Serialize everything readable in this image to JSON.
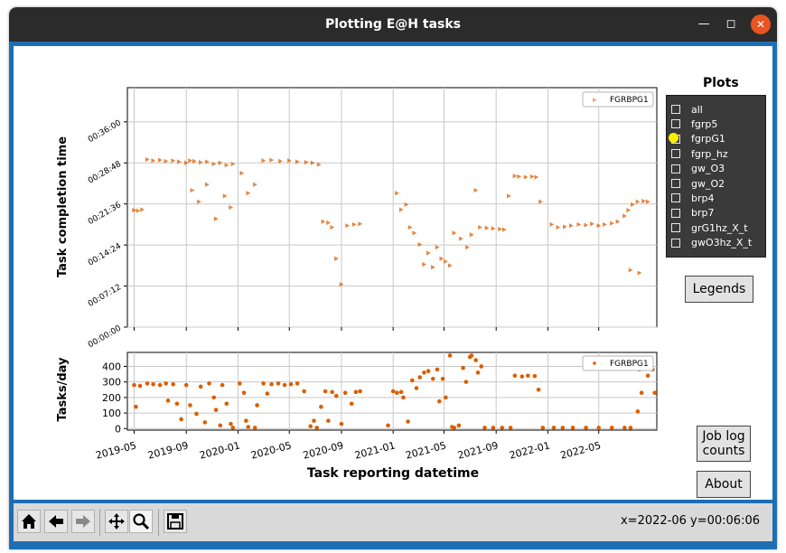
{
  "window": {
    "title": "Plotting E@H tasks"
  },
  "plots_panel": {
    "title": "Plots",
    "items": [
      {
        "label": "all",
        "checked": false
      },
      {
        "label": "fgrp5",
        "checked": false
      },
      {
        "label": "fgrpG1",
        "checked": true
      },
      {
        "label": "fgrp_hz",
        "checked": false
      },
      {
        "label": "gw_O3",
        "checked": false
      },
      {
        "label": "gw_O2",
        "checked": false
      },
      {
        "label": "brp4",
        "checked": false
      },
      {
        "label": "brp7",
        "checked": false
      },
      {
        "label": "grG1hz_X_t",
        "checked": false
      },
      {
        "label": "gwO3hz_X_t",
        "checked": false
      }
    ]
  },
  "buttons": {
    "legends": "Legends",
    "job_log_line1": "Job log",
    "job_log_line2": "counts",
    "about": "About"
  },
  "toolbar": {
    "coords": "x=2022-06 y=00:06:06",
    "icons": [
      "home-icon",
      "back-icon",
      "forward-icon",
      "pan-icon",
      "zoom-icon",
      "save-icon"
    ]
  },
  "colors": {
    "series": "#d95f02",
    "panel_bg": "#3a3a3a",
    "checked_marker": "#ffee00",
    "frame": "#1e6eb4"
  },
  "chart_data": [
    {
      "type": "scatter",
      "ylabel": "Task completion time",
      "legend": "top-right",
      "legend_entry": "FGRBPG1",
      "grid": true,
      "xlim": [
        "2019-04-15",
        "2022-09-15"
      ],
      "ylim_minutes": [
        0,
        42
      ],
      "y_ticks": [
        "00:00:00",
        "00:07:12",
        "00:14:24",
        "00:21:36",
        "00:28:48",
        "00:36:00"
      ],
      "series": [
        {
          "name": "FGRBPG1",
          "points": [
            [
              "2019-05-01",
              20.5
            ],
            [
              "2019-05-10",
              20.4
            ],
            [
              "2019-05-20",
              20.6
            ],
            [
              "2019-06-01",
              29.4
            ],
            [
              "2019-06-15",
              29.2
            ],
            [
              "2019-07-01",
              29.3
            ],
            [
              "2019-07-15",
              29.1
            ],
            [
              "2019-08-01",
              29.2
            ],
            [
              "2019-08-15",
              29.0
            ],
            [
              "2019-09-01",
              28.8
            ],
            [
              "2019-09-10",
              29.2
            ],
            [
              "2019-09-20",
              29.1
            ],
            [
              "2019-10-05",
              28.9
            ],
            [
              "2019-10-20",
              29.0
            ],
            [
              "2019-11-05",
              28.6
            ],
            [
              "2019-11-20",
              28.8
            ],
            [
              "2019-12-05",
              28.4
            ],
            [
              "2019-12-20",
              28.6
            ],
            [
              "2019-09-15",
              24.0
            ],
            [
              "2019-10-01",
              22.0
            ],
            [
              "2019-10-20",
              25.0
            ],
            [
              "2019-11-10",
              19.0
            ],
            [
              "2019-12-01",
              23.0
            ],
            [
              "2019-12-15",
              21.0
            ],
            [
              "2020-01-10",
              27.0
            ],
            [
              "2020-01-25",
              23.5
            ],
            [
              "2020-02-10",
              25.0
            ],
            [
              "2020-03-01",
              29.2
            ],
            [
              "2020-03-20",
              29.3
            ],
            [
              "2020-04-10",
              29.1
            ],
            [
              "2020-05-01",
              29.2
            ],
            [
              "2020-05-20",
              29.0
            ],
            [
              "2020-06-10",
              28.9
            ],
            [
              "2020-06-25",
              28.8
            ],
            [
              "2020-07-10",
              28.5
            ],
            [
              "2020-07-20",
              18.5
            ],
            [
              "2020-08-01",
              18.3
            ],
            [
              "2020-08-10",
              17.5
            ],
            [
              "2020-08-20",
              12.0
            ],
            [
              "2020-09-01",
              7.5
            ],
            [
              "2020-09-15",
              17.8
            ],
            [
              "2020-10-01",
              18.0
            ],
            [
              "2020-10-15",
              18.1
            ],
            [
              "2021-01-10",
              23.5
            ],
            [
              "2021-01-20",
              20.6
            ],
            [
              "2021-02-01",
              21.5
            ],
            [
              "2021-02-10",
              17.5
            ],
            [
              "2021-02-20",
              16.5
            ],
            [
              "2021-03-05",
              14.5
            ],
            [
              "2021-03-15",
              11.0
            ],
            [
              "2021-03-25",
              13.0
            ],
            [
              "2021-04-05",
              10.5
            ],
            [
              "2021-04-15",
              14.0
            ],
            [
              "2021-04-25",
              12.0
            ],
            [
              "2021-05-05",
              11.5
            ],
            [
              "2021-05-15",
              10.8
            ],
            [
              "2021-05-25",
              16.5
            ],
            [
              "2021-06-10",
              15.5
            ],
            [
              "2021-06-25",
              14.0
            ],
            [
              "2021-07-05",
              16.2
            ],
            [
              "2021-07-15",
              24.0
            ],
            [
              "2021-07-25",
              17.5
            ],
            [
              "2021-08-10",
              17.4
            ],
            [
              "2021-08-25",
              17.3
            ],
            [
              "2021-09-10",
              17.2
            ],
            [
              "2021-09-20",
              17.1
            ],
            [
              "2021-10-01",
              23.0
            ],
            [
              "2021-10-15",
              26.5
            ],
            [
              "2021-10-25",
              26.4
            ],
            [
              "2021-11-10",
              26.3
            ],
            [
              "2021-11-25",
              26.4
            ],
            [
              "2021-12-05",
              26.3
            ],
            [
              "2021-12-15",
              22.0
            ],
            [
              "2022-01-10",
              18.0
            ],
            [
              "2022-01-25",
              17.5
            ],
            [
              "2022-02-10",
              17.6
            ],
            [
              "2022-02-25",
              17.8
            ],
            [
              "2022-03-15",
              18.0
            ],
            [
              "2022-04-01",
              17.9
            ],
            [
              "2022-04-15",
              18.1
            ],
            [
              "2022-05-01",
              17.8
            ],
            [
              "2022-05-15",
              18.0
            ],
            [
              "2022-06-01",
              18.2
            ],
            [
              "2022-06-15",
              18.5
            ],
            [
              "2022-07-01",
              19.5
            ],
            [
              "2022-07-10",
              20.5
            ],
            [
              "2022-07-20",
              21.5
            ],
            [
              "2022-08-01",
              22.0
            ],
            [
              "2022-08-15",
              22.1
            ],
            [
              "2022-08-25",
              22.0
            ],
            [
              "2022-07-15",
              10.0
            ],
            [
              "2022-08-05",
              9.5
            ]
          ]
        }
      ]
    },
    {
      "type": "scatter",
      "xlabel": "Task reporting datetime",
      "ylabel": "Tasks/day",
      "legend": "top-right",
      "legend_entry": "FGRBPG1",
      "grid": true,
      "xlim": [
        "2019-04-15",
        "2022-09-15"
      ],
      "ylim": [
        -10,
        490
      ],
      "y_ticks": [
        0,
        100,
        200,
        300,
        400
      ],
      "x_ticks": [
        "2019-05",
        "2019-09",
        "2020-01",
        "2020-05",
        "2020-09",
        "2021-01",
        "2021-05",
        "2021-09",
        "2022-01",
        "2022-05"
      ],
      "series": [
        {
          "name": "FGRBPG1",
          "points": [
            [
              "2019-05-01",
              280
            ],
            [
              "2019-05-05",
              140
            ],
            [
              "2019-05-15",
              275
            ],
            [
              "2019-06-01",
              290
            ],
            [
              "2019-06-15",
              285
            ],
            [
              "2019-07-01",
              280
            ],
            [
              "2019-07-15",
              290
            ],
            [
              "2019-07-20",
              180
            ],
            [
              "2019-08-01",
              285
            ],
            [
              "2019-08-10",
              160
            ],
            [
              "2019-08-20",
              60
            ],
            [
              "2019-09-01",
              280
            ],
            [
              "2019-09-10",
              150
            ],
            [
              "2019-09-25",
              95
            ],
            [
              "2019-10-05",
              270
            ],
            [
              "2019-10-15",
              40
            ],
            [
              "2019-10-25",
              290
            ],
            [
              "2019-11-05",
              200
            ],
            [
              "2019-11-10",
              120
            ],
            [
              "2019-11-20",
              20
            ],
            [
              "2019-11-25",
              280
            ],
            [
              "2019-12-05",
              160
            ],
            [
              "2019-12-15",
              30
            ],
            [
              "2019-12-20",
              5
            ],
            [
              "2020-01-05",
              290
            ],
            [
              "2020-01-15",
              230
            ],
            [
              "2020-01-20",
              50
            ],
            [
              "2020-01-25",
              10
            ],
            [
              "2020-02-10",
              5
            ],
            [
              "2020-02-15",
              150
            ],
            [
              "2020-03-01",
              290
            ],
            [
              "2020-03-10",
              225
            ],
            [
              "2020-03-20",
              285
            ],
            [
              "2020-04-05",
              290
            ],
            [
              "2020-04-20",
              280
            ],
            [
              "2020-05-05",
              285
            ],
            [
              "2020-05-20",
              290
            ],
            [
              "2020-06-05",
              240
            ],
            [
              "2020-06-20",
              15
            ],
            [
              "2020-06-28",
              50
            ],
            [
              "2020-07-05",
              5
            ],
            [
              "2020-07-15",
              140
            ],
            [
              "2020-07-25",
              240
            ],
            [
              "2020-08-01",
              50
            ],
            [
              "2020-08-10",
              235
            ],
            [
              "2020-08-20",
              210
            ],
            [
              "2020-09-01",
              30
            ],
            [
              "2020-09-10",
              230
            ],
            [
              "2020-09-25",
              160
            ],
            [
              "2020-10-05",
              235
            ],
            [
              "2020-10-15",
              240
            ],
            [
              "2020-12-20",
              20
            ],
            [
              "2021-01-01",
              240
            ],
            [
              "2021-01-10",
              230
            ],
            [
              "2021-01-20",
              235
            ],
            [
              "2021-01-25",
              200
            ],
            [
              "2021-02-05",
              45
            ],
            [
              "2021-02-15",
              310
            ],
            [
              "2021-02-25",
              260
            ],
            [
              "2021-03-05",
              330
            ],
            [
              "2021-03-15",
              360
            ],
            [
              "2021-03-25",
              370
            ],
            [
              "2021-04-05",
              320
            ],
            [
              "2021-04-15",
              380
            ],
            [
              "2021-04-20",
              175
            ],
            [
              "2021-04-28",
              320
            ],
            [
              "2021-05-05",
              200
            ],
            [
              "2021-05-15",
              470
            ],
            [
              "2021-05-20",
              10
            ],
            [
              "2021-05-25",
              5
            ],
            [
              "2021-06-05",
              20
            ],
            [
              "2021-06-15",
              390
            ],
            [
              "2021-06-22",
              300
            ],
            [
              "2021-07-01",
              460
            ],
            [
              "2021-07-05",
              470
            ],
            [
              "2021-07-15",
              440
            ],
            [
              "2021-07-20",
              360
            ],
            [
              "2021-07-28",
              400
            ],
            [
              "2021-08-05",
              5
            ],
            [
              "2021-08-25",
              5
            ],
            [
              "2021-09-15",
              5
            ],
            [
              "2021-10-05",
              5
            ],
            [
              "2021-10-15",
              340
            ],
            [
              "2021-11-01",
              335
            ],
            [
              "2021-11-15",
              340
            ],
            [
              "2021-12-01",
              338
            ],
            [
              "2021-12-10",
              250
            ],
            [
              "2021-12-20",
              5
            ],
            [
              "2022-01-15",
              5
            ],
            [
              "2022-02-05",
              5
            ],
            [
              "2022-03-01",
              5
            ],
            [
              "2022-04-01",
              5
            ],
            [
              "2022-05-01",
              5
            ],
            [
              "2022-06-01",
              5
            ],
            [
              "2022-07-01",
              5
            ],
            [
              "2022-07-15",
              5
            ],
            [
              "2022-08-01",
              110
            ],
            [
              "2022-08-05",
              380
            ],
            [
              "2022-08-10",
              230
            ],
            [
              "2022-08-15",
              390
            ],
            [
              "2022-08-25",
              340
            ],
            [
              "2022-09-05",
              380
            ],
            [
              "2022-09-10",
              230
            ]
          ]
        }
      ]
    }
  ]
}
